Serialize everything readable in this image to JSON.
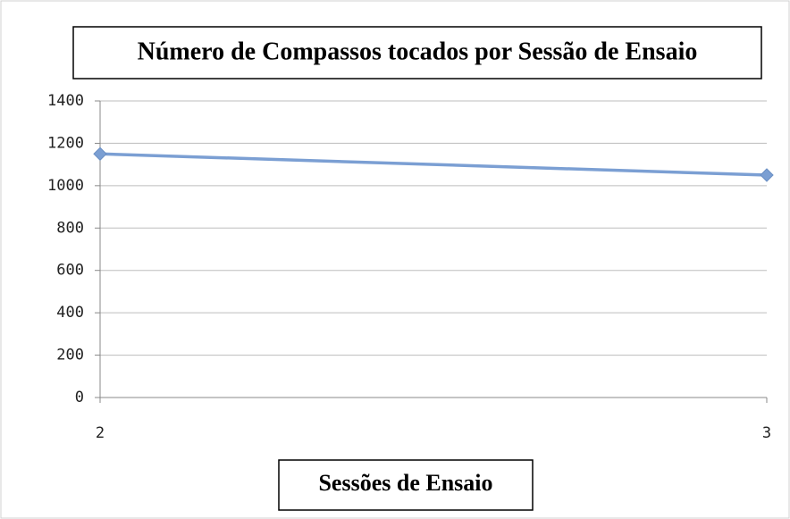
{
  "chart_data": {
    "type": "line",
    "title": "Número de Compassos tocados por Sessão de Ensaio",
    "x_label": "Sessões de Ensaio",
    "categories": [
      "2",
      "3"
    ],
    "series": [
      {
        "name": null,
        "color": "#7b9fd3",
        "values": [
          1150,
          1050
        ]
      }
    ],
    "ylim": [
      0,
      1400
    ],
    "yticks": [
      0,
      200,
      400,
      600,
      800,
      1000,
      1200,
      1400
    ],
    "grid": true
  }
}
